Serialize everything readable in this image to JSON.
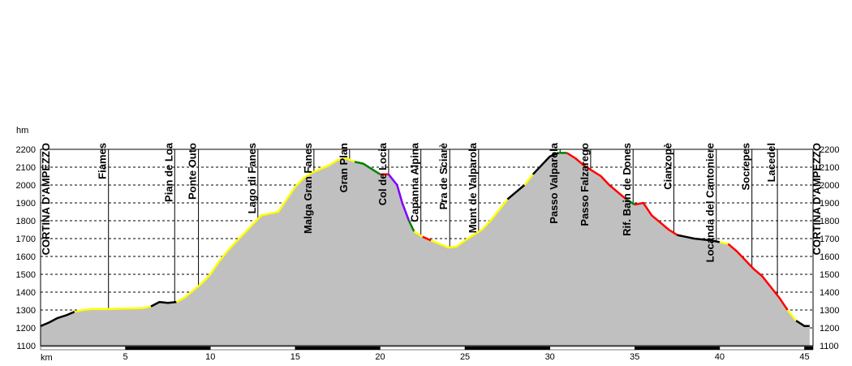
{
  "chart_data": {
    "type": "area",
    "ylabel": "hm",
    "xlabel": "km",
    "xlim": [
      0,
      45.5
    ],
    "ylim": [
      1100,
      2200
    ],
    "y_ticks": [
      1100,
      1200,
      1300,
      1400,
      1500,
      1600,
      1700,
      1800,
      1900,
      2000,
      2100,
      2200
    ],
    "x_ticks": [
      5,
      10,
      15,
      20,
      25,
      30,
      35,
      40,
      45
    ],
    "grid": true,
    "fill_color": "#c0c0c0",
    "waypoints": [
      {
        "name": "CORTINA D'AMPEZZO",
        "km": 0.0
      },
      {
        "name": "Fiames",
        "km": 4.0
      },
      {
        "name": "Pian de Loa",
        "km": 7.9
      },
      {
        "name": "Ponte Outo",
        "km": 9.3
      },
      {
        "name": "Lago di Fanes",
        "km": 12.8
      },
      {
        "name": "Malga Gran Fanes",
        "km": 16.1
      },
      {
        "name": "Gran Plan",
        "km": 18.2
      },
      {
        "name": "Col de Locia",
        "km": 20.5
      },
      {
        "name": "Capanna Alpina",
        "km": 22.4
      },
      {
        "name": "Pra de Sciarè",
        "km": 24.1
      },
      {
        "name": "Munt de Valparola",
        "km": 25.8
      },
      {
        "name": "Passo Valparola",
        "km": 30.6
      },
      {
        "name": "Passo Falzarego",
        "km": 32.4
      },
      {
        "name": "Rif. Bain de Dones",
        "km": 34.9
      },
      {
        "name": "Cianzopè",
        "km": 37.3
      },
      {
        "name": "Locanda del Cantoniere",
        "km": 39.8
      },
      {
        "name": "Socrepes",
        "km": 41.9
      },
      {
        "name": "Lacedel",
        "km": 43.4
      },
      {
        "name": "CORTINA D'AMPEZZO",
        "km": 45.3
      }
    ],
    "profile": [
      [
        0.0,
        1210
      ],
      [
        0.5,
        1230
      ],
      [
        1.0,
        1255
      ],
      [
        1.5,
        1270
      ],
      [
        2.0,
        1290
      ],
      [
        2.5,
        1300
      ],
      [
        3.0,
        1305
      ],
      [
        4.0,
        1305
      ],
      [
        5.0,
        1308
      ],
      [
        6.0,
        1310
      ],
      [
        6.5,
        1320
      ],
      [
        7.0,
        1345
      ],
      [
        7.5,
        1340
      ],
      [
        8.0,
        1345
      ],
      [
        8.5,
        1370
      ],
      [
        9.0,
        1410
      ],
      [
        9.5,
        1450
      ],
      [
        10.0,
        1500
      ],
      [
        10.5,
        1570
      ],
      [
        11.0,
        1630
      ],
      [
        11.5,
        1680
      ],
      [
        12.0,
        1730
      ],
      [
        12.5,
        1780
      ],
      [
        13.0,
        1830
      ],
      [
        13.5,
        1840
      ],
      [
        14.0,
        1850
      ],
      [
        14.5,
        1920
      ],
      [
        15.0,
        1990
      ],
      [
        15.5,
        2040
      ],
      [
        16.0,
        2070
      ],
      [
        16.5,
        2090
      ],
      [
        17.0,
        2110
      ],
      [
        17.5,
        2140
      ],
      [
        18.0,
        2150
      ],
      [
        18.5,
        2130
      ],
      [
        19.0,
        2120
      ],
      [
        19.5,
        2090
      ],
      [
        20.0,
        2060
      ],
      [
        20.5,
        2060
      ],
      [
        21.0,
        2000
      ],
      [
        21.3,
        1900
      ],
      [
        21.7,
        1800
      ],
      [
        22.0,
        1740
      ],
      [
        22.5,
        1710
      ],
      [
        23.0,
        1690
      ],
      [
        23.5,
        1670
      ],
      [
        24.0,
        1650
      ],
      [
        24.5,
        1655
      ],
      [
        25.0,
        1690
      ],
      [
        25.5,
        1720
      ],
      [
        26.0,
        1750
      ],
      [
        26.5,
        1800
      ],
      [
        27.0,
        1860
      ],
      [
        27.5,
        1920
      ],
      [
        28.0,
        1960
      ],
      [
        28.5,
        2000
      ],
      [
        29.0,
        2060
      ],
      [
        29.5,
        2110
      ],
      [
        30.0,
        2160
      ],
      [
        30.5,
        2180
      ],
      [
        31.0,
        2180
      ],
      [
        31.5,
        2150
      ],
      [
        32.0,
        2110
      ],
      [
        32.5,
        2080
      ],
      [
        33.0,
        2050
      ],
      [
        33.5,
        2000
      ],
      [
        34.0,
        1960
      ],
      [
        34.5,
        1920
      ],
      [
        35.0,
        1890
      ],
      [
        35.5,
        1900
      ],
      [
        36.0,
        1830
      ],
      [
        36.5,
        1790
      ],
      [
        37.0,
        1750
      ],
      [
        37.5,
        1720
      ],
      [
        38.0,
        1710
      ],
      [
        38.5,
        1700
      ],
      [
        39.0,
        1695
      ],
      [
        39.5,
        1690
      ],
      [
        40.0,
        1680
      ],
      [
        40.5,
        1670
      ],
      [
        41.0,
        1630
      ],
      [
        41.5,
        1580
      ],
      [
        42.0,
        1530
      ],
      [
        42.5,
        1490
      ],
      [
        43.0,
        1430
      ],
      [
        43.5,
        1370
      ],
      [
        44.0,
        1300
      ],
      [
        44.5,
        1240
      ],
      [
        45.0,
        1210
      ],
      [
        45.3,
        1210
      ]
    ],
    "surface_segments": [
      {
        "from_km": 0.0,
        "to_km": 2.0,
        "color": "#000000"
      },
      {
        "from_km": 2.0,
        "to_km": 6.5,
        "color": "#ffff00"
      },
      {
        "from_km": 6.5,
        "to_km": 8.0,
        "color": "#000000"
      },
      {
        "from_km": 8.0,
        "to_km": 18.5,
        "color": "#ffff00"
      },
      {
        "from_km": 18.5,
        "to_km": 20.0,
        "color": "#008000"
      },
      {
        "from_km": 20.0,
        "to_km": 20.5,
        "color": "#ff0000"
      },
      {
        "from_km": 20.5,
        "to_km": 21.7,
        "color": "#8000ff"
      },
      {
        "from_km": 21.7,
        "to_km": 22.0,
        "color": "#008000"
      },
      {
        "from_km": 22.0,
        "to_km": 22.5,
        "color": "#ffff00"
      },
      {
        "from_km": 22.5,
        "to_km": 23.0,
        "color": "#ff0000"
      },
      {
        "from_km": 23.0,
        "to_km": 27.5,
        "color": "#ffff00"
      },
      {
        "from_km": 27.5,
        "to_km": 28.5,
        "color": "#000000"
      },
      {
        "from_km": 28.5,
        "to_km": 29.0,
        "color": "#ffff00"
      },
      {
        "from_km": 29.0,
        "to_km": 30.5,
        "color": "#000000"
      },
      {
        "from_km": 30.5,
        "to_km": 31.0,
        "color": "#008000"
      },
      {
        "from_km": 31.0,
        "to_km": 34.5,
        "color": "#ff0000"
      },
      {
        "from_km": 34.5,
        "to_km": 35.0,
        "color": "#008000"
      },
      {
        "from_km": 35.0,
        "to_km": 37.5,
        "color": "#ff0000"
      },
      {
        "from_km": 37.5,
        "to_km": 40.0,
        "color": "#000000"
      },
      {
        "from_km": 40.0,
        "to_km": 40.5,
        "color": "#ffff00"
      },
      {
        "from_km": 40.5,
        "to_km": 44.0,
        "color": "#ff0000"
      },
      {
        "from_km": 44.0,
        "to_km": 44.5,
        "color": "#ffff00"
      },
      {
        "from_km": 44.5,
        "to_km": 45.3,
        "color": "#000000"
      }
    ]
  }
}
